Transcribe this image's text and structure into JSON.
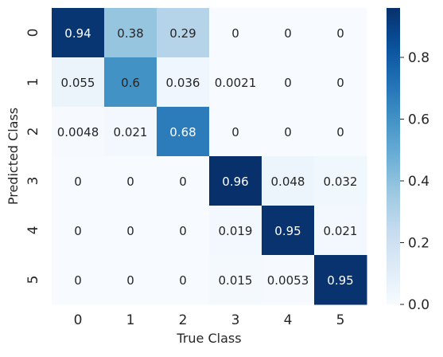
{
  "chart_data": {
    "type": "heatmap",
    "title": "",
    "xlabel": "True Class",
    "ylabel": "Predicted Class",
    "x_categories": [
      "0",
      "1",
      "2",
      "3",
      "4",
      "5"
    ],
    "y_categories": [
      "0",
      "1",
      "2",
      "3",
      "4",
      "5"
    ],
    "values": [
      [
        0.94,
        0.38,
        0.29,
        0,
        0,
        0
      ],
      [
        0.055,
        0.6,
        0.036,
        0.0021,
        0,
        0
      ],
      [
        0.0048,
        0.021,
        0.68,
        0,
        0,
        0
      ],
      [
        0,
        0,
        0,
        0.96,
        0.048,
        0.032
      ],
      [
        0,
        0,
        0,
        0.019,
        0.95,
        0.021
      ],
      [
        0,
        0,
        0,
        0.015,
        0.0053,
        0.95
      ]
    ],
    "cell_labels": [
      [
        "0.94",
        "0.38",
        "0.29",
        "0",
        "0",
        "0"
      ],
      [
        "0.055",
        "0.6",
        "0.036",
        "0.0021",
        "0",
        "0"
      ],
      [
        "0.0048",
        "0.021",
        "0.68",
        "0",
        "0",
        "0"
      ],
      [
        "0",
        "0",
        "0",
        "0.96",
        "0.048",
        "0.032"
      ],
      [
        "0",
        "0",
        "0",
        "0.019",
        "0.95",
        "0.021"
      ],
      [
        "0",
        "0",
        "0",
        "0.015",
        "0.0053",
        "0.95"
      ]
    ],
    "colorscale": "Blues",
    "color_range": [
      0,
      0.96
    ],
    "colorbar_ticks": [
      "0.0",
      "0.2",
      "0.4",
      "0.6",
      "0.8"
    ],
    "colorbar_tick_values": [
      0,
      0.2,
      0.4,
      0.6,
      0.8
    ],
    "grid": false
  }
}
